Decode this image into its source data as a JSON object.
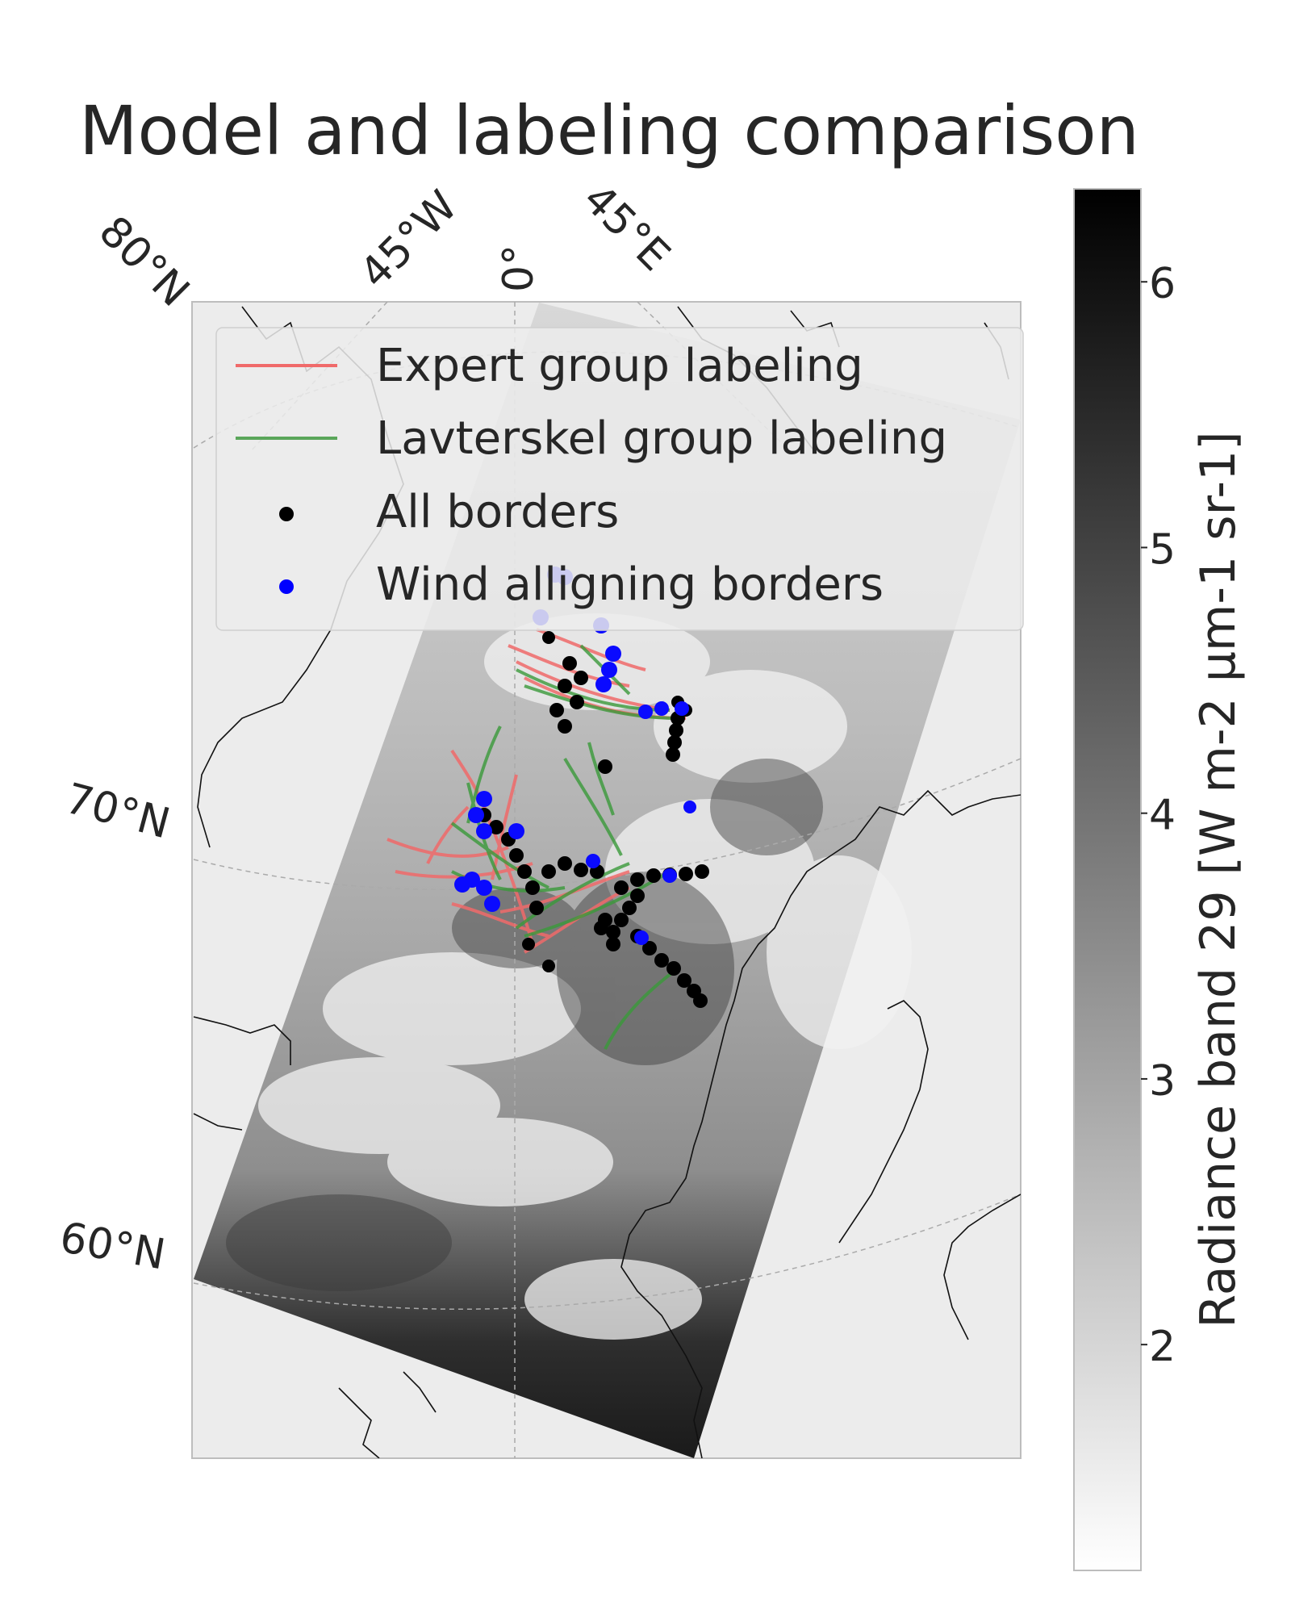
{
  "title": "Model and labeling comparison",
  "map": {
    "lon_labels": [
      "45°W",
      "0°",
      "45°E"
    ],
    "lat_labels": [
      "80°N",
      "70°N",
      "60°N"
    ]
  },
  "legend": {
    "entries": [
      {
        "label": "Expert group labeling",
        "marker": "line",
        "color": "#f06a6a"
      },
      {
        "label": "Lavterskel group labeling",
        "marker": "line",
        "color": "#5aa65a"
      },
      {
        "label": "All borders",
        "marker": "dot",
        "color": "#000000"
      },
      {
        "label": "Wind alligning borders",
        "marker": "dot",
        "color": "#0000ff"
      }
    ]
  },
  "colorbar": {
    "label": "Radiance band 29 [W m-2 µm-1 sr-1]",
    "ticks": [
      "2",
      "3",
      "4",
      "5",
      "6"
    ],
    "min": 1.15,
    "max": 6.35
  }
}
